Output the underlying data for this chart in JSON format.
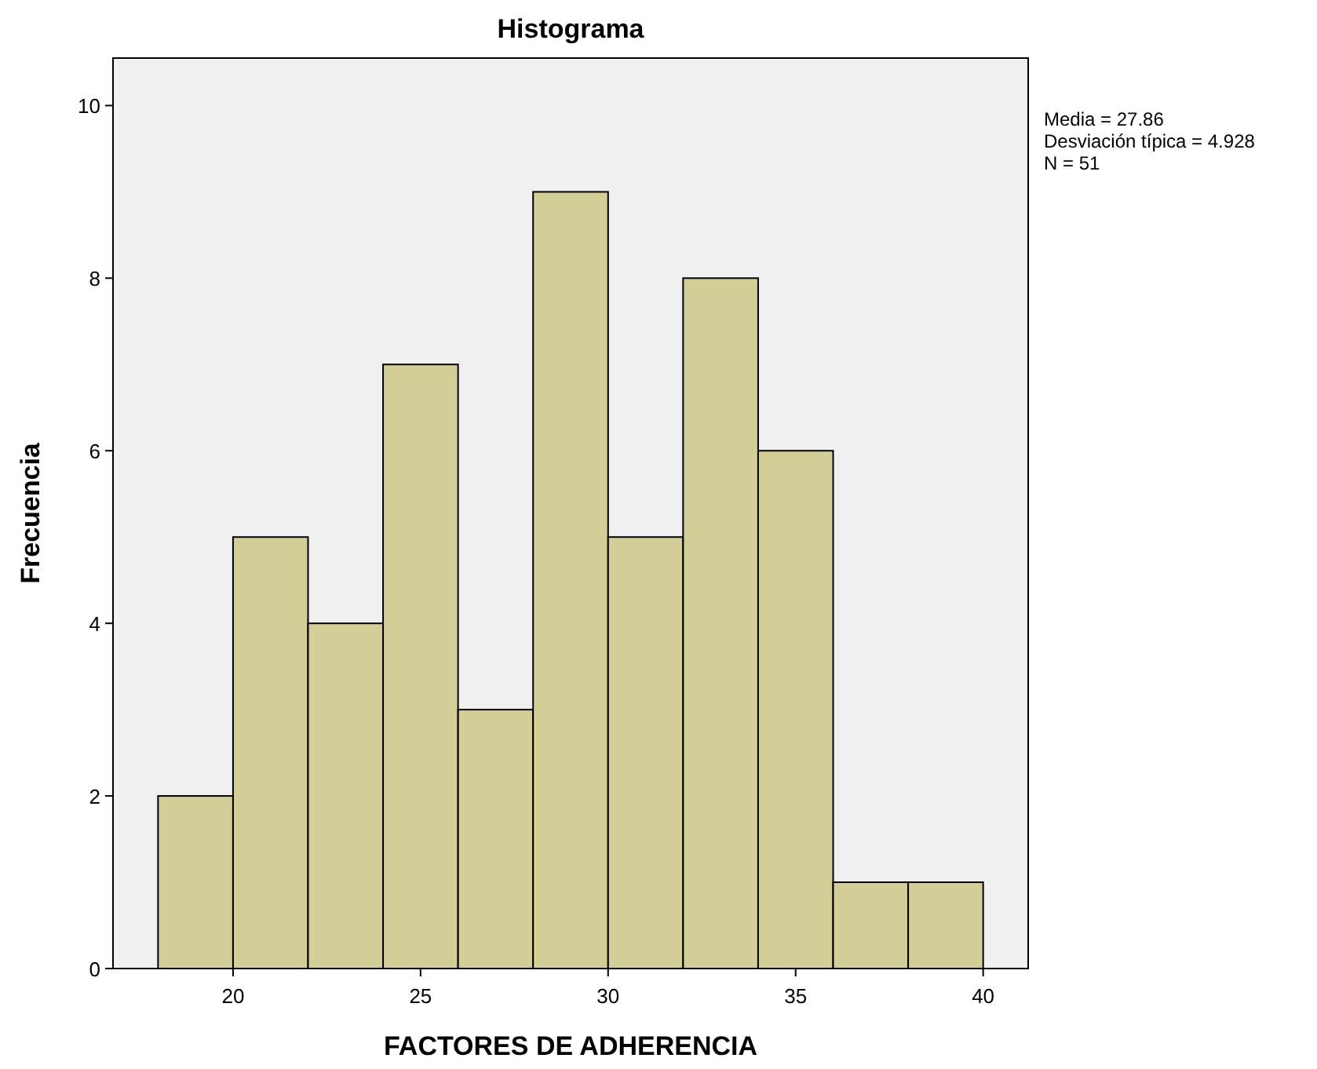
{
  "chart_data": {
    "type": "histogram",
    "title": "Histograma",
    "xlabel": "FACTORES DE ADHERENCIA",
    "ylabel": "Frecuencia",
    "bins": [
      18,
      20,
      22,
      24,
      26,
      28,
      30,
      32,
      34,
      36,
      38,
      40
    ],
    "values": [
      2,
      5,
      4,
      7,
      3,
      9,
      5,
      8,
      6,
      1,
      1
    ],
    "color": "#d3ce97",
    "xlim": [
      16.8,
      41.2
    ],
    "xticks": [
      20,
      25,
      30,
      35,
      40
    ],
    "ylim": [
      0,
      10.55
    ],
    "yticks": [
      0,
      2,
      4,
      6,
      8,
      10
    ],
    "grid": false,
    "annotations": [
      "Media = 27.86",
      "Desviación típica = 4.928",
      "N = 51"
    ]
  }
}
